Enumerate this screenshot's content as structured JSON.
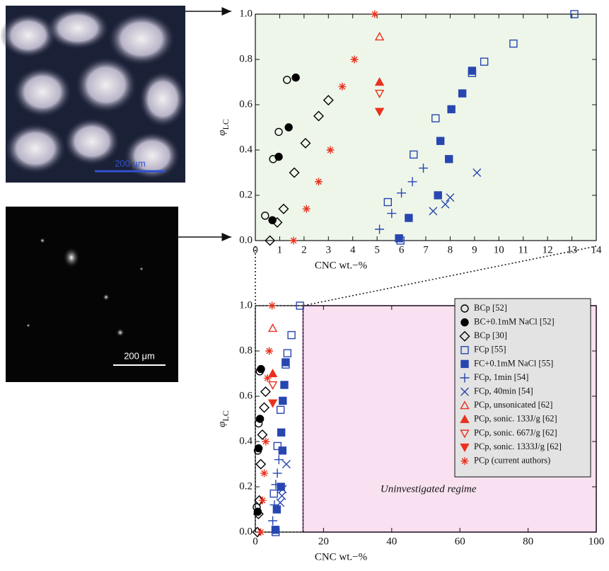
{
  "images": [
    {
      "scale_label": "200 μm"
    },
    {
      "scale_label": "200 μm"
    }
  ],
  "chart_data": [
    {
      "type": "scatter",
      "xlabel": "CNC wt.−%",
      "ylabel": "φ",
      "ylabel_subscript": "LC",
      "xlim": [
        0,
        14
      ],
      "ylim": [
        0,
        1
      ],
      "xticks": [
        0,
        1,
        2,
        3,
        4,
        5,
        6,
        7,
        8,
        9,
        10,
        11,
        12,
        13,
        14
      ],
      "yticks": [
        {
          "value": 0,
          "label": "0.0"
        },
        0.2,
        0.4,
        0.6,
        0.8,
        {
          "value": 1,
          "label": "1.0"
        }
      ],
      "background": "#eef6ea",
      "series": [
        {
          "marker": "circle",
          "filled": false,
          "color": "#000000",
          "x": [
            0.4,
            0.73,
            0.96,
            1.3
          ],
          "values": [
            0.11,
            0.36,
            0.48,
            0.71
          ]
        },
        {
          "marker": "circle",
          "filled": true,
          "color": "#000000",
          "x": [
            0.7,
            0.96,
            1.37,
            1.66
          ],
          "values": [
            0.09,
            0.37,
            0.5,
            0.72
          ]
        },
        {
          "marker": "diamond",
          "filled": false,
          "color": "#000000",
          "x": [
            0.6,
            0.9,
            1.16,
            1.6,
            2.06,
            2.6,
            3.0
          ],
          "values": [
            0.0,
            0.08,
            0.14,
            0.3,
            0.43,
            0.55,
            0.62
          ]
        },
        {
          "marker": "square",
          "filled": false,
          "color": "#2746b0",
          "x": [
            5.96,
            5.44,
            6.5,
            7.4,
            8.9,
            9.4,
            10.6,
            13.1
          ],
          "values": [
            0.0,
            0.17,
            0.38,
            0.54,
            0.74,
            0.79,
            0.87,
            1.0
          ]
        },
        {
          "marker": "square",
          "filled": true,
          "color": "#2746b0",
          "x": [
            5.9,
            6.3,
            7.5,
            7.95,
            7.6,
            8.05,
            8.5,
            8.9
          ],
          "values": [
            0.01,
            0.1,
            0.2,
            0.36,
            0.44,
            0.58,
            0.65,
            0.75
          ]
        },
        {
          "marker": "plus",
          "filled": false,
          "color": "#2746b0",
          "x": [
            5.1,
            5.6,
            6.0,
            6.45,
            6.9
          ],
          "values": [
            0.05,
            0.12,
            0.21,
            0.26,
            0.32
          ]
        },
        {
          "marker": "cross",
          "filled": false,
          "color": "#2746b0",
          "x": [
            7.3,
            7.8,
            8.0,
            9.1
          ],
          "values": [
            0.13,
            0.16,
            0.19,
            0.3
          ]
        },
        {
          "marker": "triangle-up",
          "filled": false,
          "color": "#e8321e",
          "x": [
            5.1
          ],
          "values": [
            0.9
          ]
        },
        {
          "marker": "triangle-up",
          "filled": true,
          "color": "#e8321e",
          "x": [
            5.1
          ],
          "values": [
            0.7
          ]
        },
        {
          "marker": "triangle-down",
          "filled": false,
          "color": "#e8321e",
          "x": [
            5.1
          ],
          "values": [
            0.65
          ]
        },
        {
          "marker": "triangle-down",
          "filled": true,
          "color": "#e8321e",
          "x": [
            5.1
          ],
          "values": [
            0.57
          ]
        },
        {
          "marker": "asterisk",
          "filled": false,
          "color": "#e8321e",
          "x": [
            4.9,
            4.07,
            3.57,
            3.08,
            2.6,
            2.1,
            1.57
          ],
          "values": [
            1.0,
            0.8,
            0.68,
            0.4,
            0.26,
            0.14,
            0.0
          ]
        }
      ]
    },
    {
      "type": "scatter",
      "xlabel": "CNC wt.−%",
      "ylabel": "φ",
      "ylabel_subscript": "LC",
      "xlim": [
        0,
        100
      ],
      "ylim": [
        0,
        1
      ],
      "xticks": [
        0,
        20,
        40,
        60,
        80,
        100
      ],
      "yticks": [
        {
          "value": 0,
          "label": "0.0"
        },
        0.2,
        0.4,
        0.6,
        0.8,
        {
          "value": 1,
          "label": "1.0"
        }
      ],
      "background": "#ffffff",
      "region_color": "#f9e1f1",
      "annotation": "Uninvestigated regime",
      "legend": "upper right",
      "series": [
        {
          "name": "BCp [52]",
          "marker": "circle",
          "filled": false,
          "color": "#000000",
          "x": [
            0.4,
            0.73,
            0.96,
            1.3
          ],
          "values": [
            0.11,
            0.36,
            0.48,
            0.71
          ]
        },
        {
          "name": "BC+0.1mM NaCl [52]",
          "marker": "circle",
          "filled": true,
          "color": "#000000",
          "x": [
            0.7,
            0.96,
            1.37,
            1.66
          ],
          "values": [
            0.09,
            0.37,
            0.5,
            0.72
          ]
        },
        {
          "name": "BCp [30]",
          "marker": "diamond",
          "filled": false,
          "color": "#000000",
          "x": [
            0.6,
            0.9,
            1.16,
            1.6,
            2.06,
            2.6,
            3.0
          ],
          "values": [
            0.0,
            0.08,
            0.14,
            0.3,
            0.43,
            0.55,
            0.62
          ]
        },
        {
          "name": "FCp [55]",
          "marker": "square",
          "filled": false,
          "color": "#2746b0",
          "x": [
            5.96,
            5.44,
            6.5,
            7.4,
            8.9,
            9.4,
            10.6,
            13.1
          ],
          "values": [
            0.0,
            0.17,
            0.38,
            0.54,
            0.74,
            0.79,
            0.87,
            1.0
          ]
        },
        {
          "name": "FC+0.1mM NaCl [55]",
          "marker": "square",
          "filled": true,
          "color": "#2746b0",
          "x": [
            5.9,
            6.3,
            7.5,
            7.95,
            7.6,
            8.05,
            8.5,
            8.9
          ],
          "values": [
            0.01,
            0.1,
            0.2,
            0.36,
            0.44,
            0.58,
            0.65,
            0.75
          ]
        },
        {
          "name": "FCp, 1min [54]",
          "marker": "plus",
          "filled": false,
          "color": "#2746b0",
          "x": [
            5.1,
            5.6,
            6.0,
            6.45,
            6.9
          ],
          "values": [
            0.05,
            0.12,
            0.21,
            0.26,
            0.32
          ]
        },
        {
          "name": "FCp, 40min [54]",
          "marker": "cross",
          "filled": false,
          "color": "#2746b0",
          "x": [
            7.3,
            7.8,
            8.0,
            9.1
          ],
          "values": [
            0.13,
            0.16,
            0.19,
            0.3
          ]
        },
        {
          "name": "PCp, unsonicated [62]",
          "marker": "triangle-up",
          "filled": false,
          "color": "#e8321e",
          "x": [
            5.1
          ],
          "values": [
            0.9
          ]
        },
        {
          "name": "PCp, sonic. 133J/g [62]",
          "marker": "triangle-up",
          "filled": true,
          "color": "#e8321e",
          "x": [
            5.1
          ],
          "values": [
            0.7
          ]
        },
        {
          "name": "PCp, sonic. 667J/g [62]",
          "marker": "triangle-down",
          "filled": false,
          "color": "#e8321e",
          "x": [
            5.1
          ],
          "values": [
            0.65
          ]
        },
        {
          "name": "PCp, sonic. 1333J/g [62]",
          "marker": "triangle-down",
          "filled": true,
          "color": "#e8321e",
          "x": [
            5.1
          ],
          "values": [
            0.57
          ]
        },
        {
          "name": "PCp (current authors)",
          "marker": "asterisk",
          "filled": false,
          "color": "#e8321e",
          "x": [
            4.9,
            4.07,
            3.57,
            3.08,
            2.6,
            2.1,
            1.57
          ],
          "values": [
            1.0,
            0.8,
            0.68,
            0.4,
            0.26,
            0.14,
            0.0
          ]
        }
      ]
    }
  ]
}
